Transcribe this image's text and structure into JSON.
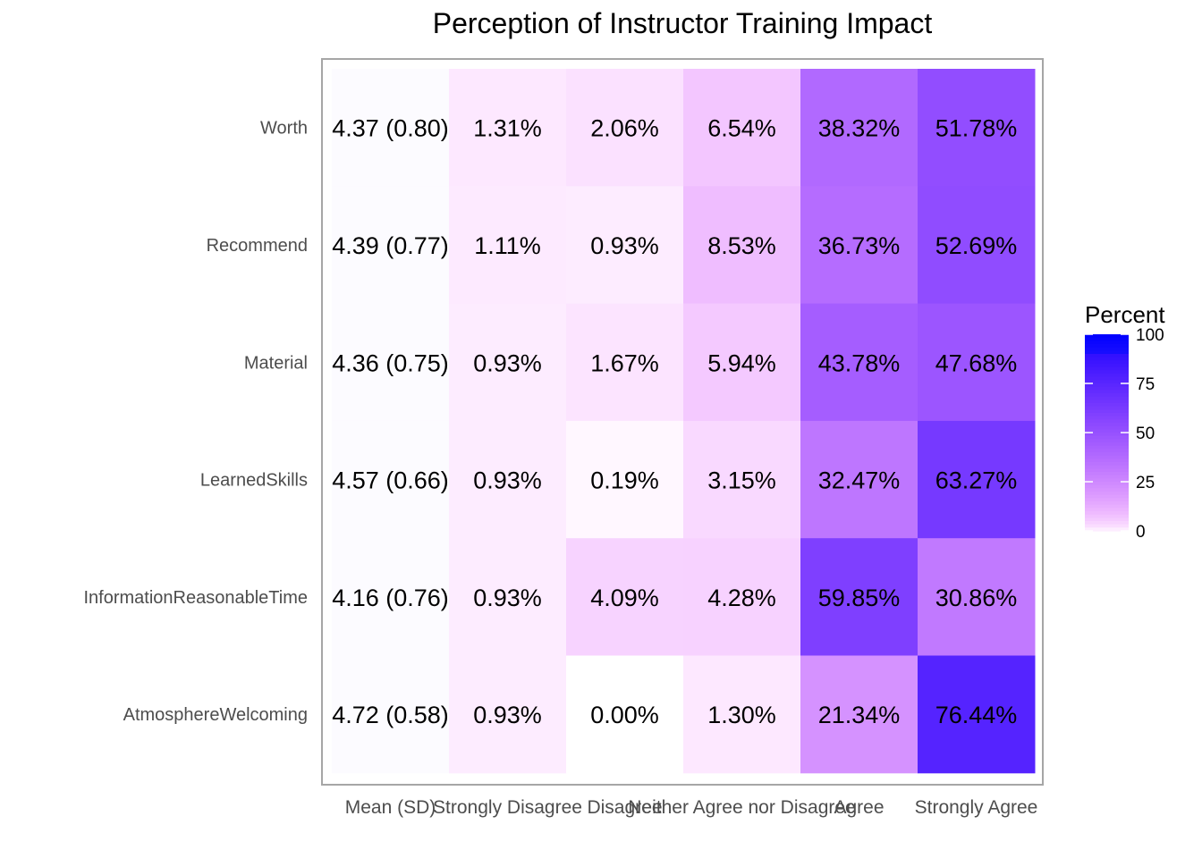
{
  "chart_data": {
    "type": "heatmap",
    "title": "Perception of Instructor Training Impact",
    "xlabel": "",
    "ylabel": "",
    "columns": [
      "Mean (SD)",
      "Strongly Disagree",
      "Disagree",
      "Neither Agree nor Disagree",
      "Agree",
      "Strongly Agree"
    ],
    "rows": [
      "Worth",
      "Recommend",
      "Material",
      "LearnedSkills",
      "InformationReasonableTime",
      "AtmosphereWelcoming"
    ],
    "mean_sd": [
      "4.37 (0.80)",
      "4.39 (0.77)",
      "4.36 (0.75)",
      "4.57 (0.66)",
      "4.16 (0.76)",
      "4.72 (0.58)"
    ],
    "values": [
      [
        1.31,
        2.06,
        6.54,
        38.32,
        51.78
      ],
      [
        1.11,
        0.93,
        8.53,
        36.73,
        52.69
      ],
      [
        0.93,
        1.67,
        5.94,
        43.78,
        47.68
      ],
      [
        0.93,
        0.19,
        3.15,
        32.47,
        63.27
      ],
      [
        0.93,
        4.09,
        4.28,
        59.85,
        30.86
      ],
      [
        0.93,
        0.0,
        1.3,
        21.34,
        76.44
      ]
    ],
    "value_labels": [
      [
        "1.31%",
        "2.06%",
        "6.54%",
        "38.32%",
        "51.78%"
      ],
      [
        "1.11%",
        "0.93%",
        "8.53%",
        "36.73%",
        "52.69%"
      ],
      [
        "0.93%",
        "1.67%",
        "5.94%",
        "43.78%",
        "47.68%"
      ],
      [
        "0.93%",
        "0.19%",
        "3.15%",
        "32.47%",
        "63.27%"
      ],
      [
        "0.93%",
        "4.09%",
        "4.28%",
        "59.85%",
        "30.86%"
      ],
      [
        "0.93%",
        "0.00%",
        "1.30%",
        "21.34%",
        "76.44%"
      ]
    ],
    "legend": {
      "title": "Percent",
      "ticks": [
        "0",
        "25",
        "50",
        "75",
        "100"
      ],
      "range": [
        0,
        100
      ],
      "low_color": "#ffffff",
      "high_color": "#0000ff",
      "placement": "right"
    },
    "mean_column_fill": "#fcfbff",
    "panel_border_color": "#a6a6a6"
  }
}
